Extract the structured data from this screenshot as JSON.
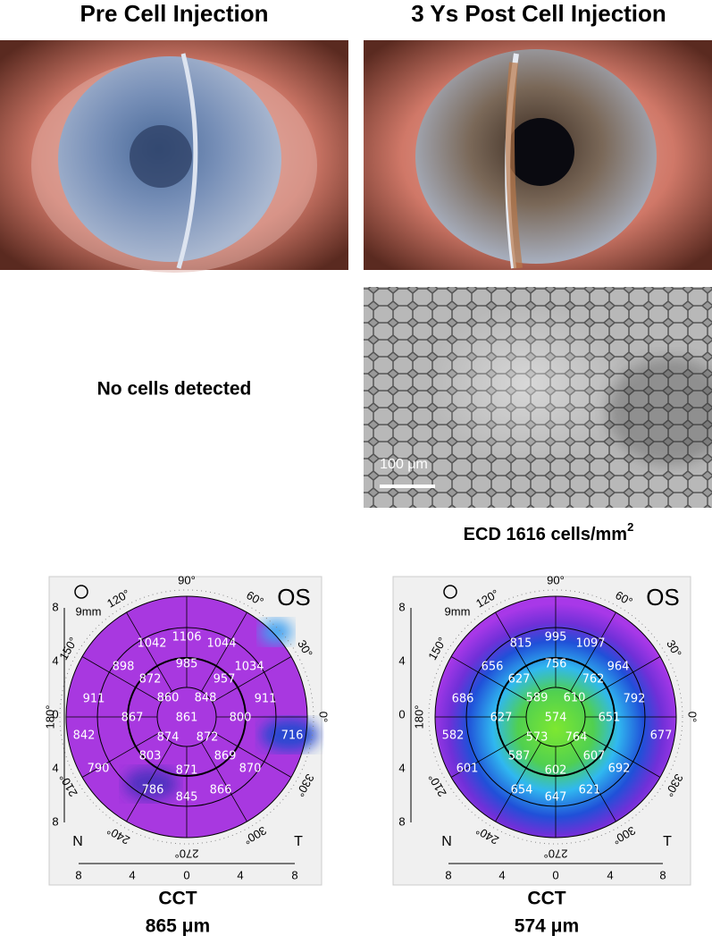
{
  "header": {
    "left_title": "Pre Cell Injection",
    "right_title": "3 Ys Post Cell Injection"
  },
  "specular": {
    "left_note": "No cells detected",
    "scale_bar": "100 μm",
    "ecd_text": "ECD 1616 cells/mm",
    "ecd_sup": "2"
  },
  "maps": [
    {
      "eye": "OS",
      "scale": "9mm",
      "nasal": "N",
      "temporal": "T",
      "angles": [
        "90°",
        "120°",
        "150°",
        "180°",
        "210°",
        "240°",
        "270°",
        "300°",
        "330°",
        "0°",
        "30°",
        "60°"
      ],
      "yticks": [
        8,
        4,
        0,
        4,
        8
      ],
      "xticks": [
        8,
        4,
        0,
        4,
        8
      ],
      "values": [
        1106,
        1042,
        1044,
        898,
        985,
        1034,
        872,
        957,
        911,
        860,
        848,
        911,
        867,
        861,
        800,
        716,
        842,
        874,
        872,
        803,
        869,
        790,
        871,
        870,
        786,
        845,
        866
      ],
      "cct_label": "CCT",
      "cct": "865 μm"
    },
    {
      "eye": "OS",
      "scale": "9mm",
      "nasal": "N",
      "temporal": "T",
      "angles": [
        "90°",
        "120°",
        "150°",
        "180°",
        "210°",
        "240°",
        "270°",
        "300°",
        "330°",
        "0°",
        "30°",
        "60°"
      ],
      "yticks": [
        8,
        4,
        0,
        4,
        8
      ],
      "xticks": [
        8,
        4,
        0,
        4,
        8
      ],
      "values": [
        995,
        815,
        1097,
        656,
        756,
        964,
        627,
        762,
        686,
        589,
        610,
        792,
        627,
        574,
        651,
        677,
        582,
        573,
        764,
        587,
        607,
        601,
        602,
        692,
        654,
        647,
        621
      ],
      "cct_label": "CCT",
      "cct": "574 μm"
    }
  ]
}
